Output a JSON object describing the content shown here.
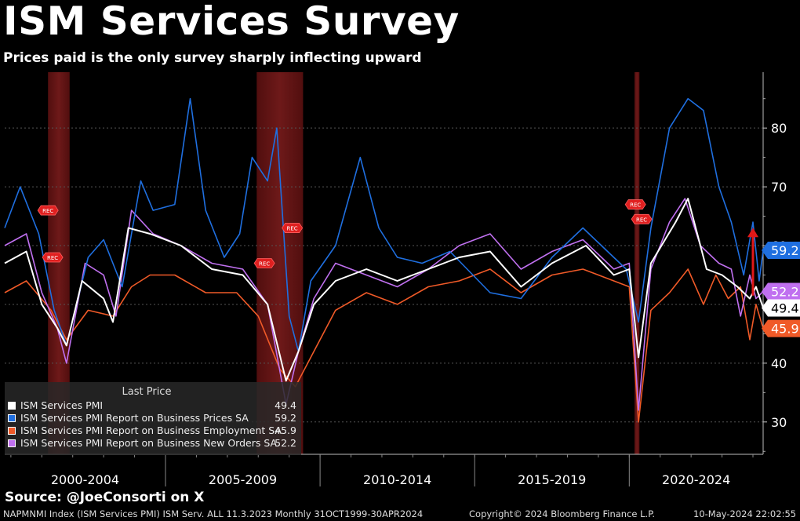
{
  "header": {
    "title": "ISM Services Survey",
    "subtitle": "Prices paid is the only survey sharply inflecting upward"
  },
  "source": "Source: @JoeConsorti on X",
  "footer": {
    "left": "NAPMNMI Index (ISM Services PMI) ISM Serv. ALL 11.3.2023  Monthly 31OCT1999-30APR2024",
    "middle": "Copyright© 2024 Bloomberg Finance L.P.",
    "right": "10-May-2024 22:02:55"
  },
  "legend": {
    "header": "Last Price",
    "entries": [
      {
        "name": "ISM Services PMI",
        "value": "49.4",
        "color": "#ffffff"
      },
      {
        "name": "ISM Services PMI Report on Business Prices SA",
        "value": "59.2",
        "color": "#1f6fe0"
      },
      {
        "name": "ISM Services PMI Report on Business Employment SA",
        "value": "45.9",
        "color": "#f05a28"
      },
      {
        "name": "ISM Services PMI Report on Business New Orders SA",
        "value": "52.2",
        "color": "#c070f0"
      }
    ]
  },
  "chart_data": {
    "type": "line",
    "x_range": [
      1999.8,
      2024.33
    ],
    "ylim": [
      24.5,
      89.5
    ],
    "y_ticks": [
      30,
      40,
      50,
      60,
      70,
      80
    ],
    "x_groups": [
      "2000-2004",
      "2005-2009",
      "2010-2014",
      "2015-2019",
      "2020-2024"
    ],
    "recessions": [
      [
        2001.2,
        2001.9
      ],
      [
        2007.95,
        2009.45
      ],
      [
        2020.17,
        2020.33
      ]
    ],
    "recession_label": "REC",
    "arrow_color": "#e01818",
    "grid": true,
    "legend_placement": "bottom-left",
    "series": [
      {
        "name": "ISM Services PMI",
        "color": "#ffffff",
        "last": "49.4",
        "points": [
          [
            1999.8,
            57
          ],
          [
            2000.5,
            59
          ],
          [
            2001.0,
            50
          ],
          [
            2001.5,
            46
          ],
          [
            2001.8,
            43
          ],
          [
            2002.3,
            54
          ],
          [
            2003.0,
            51
          ],
          [
            2003.3,
            47
          ],
          [
            2003.8,
            63
          ],
          [
            2004.5,
            62
          ],
          [
            2005.5,
            60
          ],
          [
            2006.5,
            56
          ],
          [
            2007.5,
            55
          ],
          [
            2008.3,
            50
          ],
          [
            2008.9,
            37
          ],
          [
            2009.3,
            42
          ],
          [
            2009.8,
            50
          ],
          [
            2010.5,
            54
          ],
          [
            2011.5,
            56
          ],
          [
            2012.5,
            54
          ],
          [
            2013.5,
            56
          ],
          [
            2014.5,
            58
          ],
          [
            2015.5,
            59
          ],
          [
            2016.5,
            53
          ],
          [
            2017.5,
            57
          ],
          [
            2018.6,
            60
          ],
          [
            2019.5,
            55
          ],
          [
            2020.0,
            56
          ],
          [
            2020.3,
            41
          ],
          [
            2020.7,
            57
          ],
          [
            2021.5,
            64
          ],
          [
            2021.9,
            68
          ],
          [
            2022.5,
            56
          ],
          [
            2023.0,
            55
          ],
          [
            2023.5,
            53
          ],
          [
            2023.9,
            51
          ],
          [
            2024.1,
            53
          ],
          [
            2024.33,
            49.4
          ]
        ]
      },
      {
        "name": "ISM Services PMI Report on Business Prices SA",
        "color": "#1f6fe0",
        "last": "59.2",
        "points": [
          [
            1999.8,
            63
          ],
          [
            2000.3,
            70
          ],
          [
            2000.9,
            62
          ],
          [
            2001.4,
            49
          ],
          [
            2001.8,
            43
          ],
          [
            2002.5,
            58
          ],
          [
            2003.0,
            61
          ],
          [
            2003.6,
            53
          ],
          [
            2004.2,
            71
          ],
          [
            2004.6,
            66
          ],
          [
            2005.3,
            67
          ],
          [
            2005.8,
            85
          ],
          [
            2006.3,
            66
          ],
          [
            2006.9,
            58
          ],
          [
            2007.4,
            62
          ],
          [
            2007.8,
            75
          ],
          [
            2008.3,
            71
          ],
          [
            2008.6,
            80
          ],
          [
            2009.0,
            48
          ],
          [
            2009.3,
            42
          ],
          [
            2009.7,
            54
          ],
          [
            2010.5,
            60
          ],
          [
            2011.3,
            75
          ],
          [
            2011.9,
            63
          ],
          [
            2012.5,
            58
          ],
          [
            2013.3,
            57
          ],
          [
            2014.2,
            59
          ],
          [
            2015.5,
            52
          ],
          [
            2016.5,
            51
          ],
          [
            2017.5,
            58
          ],
          [
            2018.5,
            63
          ],
          [
            2019.3,
            59
          ],
          [
            2019.9,
            56
          ],
          [
            2020.3,
            47
          ],
          [
            2020.7,
            63
          ],
          [
            2021.3,
            80
          ],
          [
            2021.9,
            85
          ],
          [
            2022.4,
            83
          ],
          [
            2022.9,
            70
          ],
          [
            2023.3,
            64
          ],
          [
            2023.7,
            55
          ],
          [
            2024.0,
            64
          ],
          [
            2024.2,
            54
          ],
          [
            2024.33,
            59.2
          ]
        ]
      },
      {
        "name": "ISM Services PMI Report on Business Employment SA",
        "color": "#f05a28",
        "last": "45.9",
        "points": [
          [
            1999.8,
            52
          ],
          [
            2000.5,
            54
          ],
          [
            2001.3,
            49
          ],
          [
            2001.8,
            44
          ],
          [
            2002.5,
            49
          ],
          [
            2003.3,
            48
          ],
          [
            2003.9,
            53
          ],
          [
            2004.5,
            55
          ],
          [
            2005.3,
            55
          ],
          [
            2006.3,
            52
          ],
          [
            2007.3,
            52
          ],
          [
            2008.0,
            48
          ],
          [
            2008.7,
            39
          ],
          [
            2009.2,
            36
          ],
          [
            2009.8,
            42
          ],
          [
            2010.5,
            49
          ],
          [
            2011.5,
            52
          ],
          [
            2012.5,
            50
          ],
          [
            2013.5,
            53
          ],
          [
            2014.5,
            54
          ],
          [
            2015.5,
            56
          ],
          [
            2016.5,
            52
          ],
          [
            2017.5,
            55
          ],
          [
            2018.5,
            56
          ],
          [
            2019.5,
            54
          ],
          [
            2020.0,
            53
          ],
          [
            2020.3,
            30
          ],
          [
            2020.7,
            49
          ],
          [
            2021.3,
            52
          ],
          [
            2021.9,
            56
          ],
          [
            2022.4,
            50
          ],
          [
            2022.8,
            55
          ],
          [
            2023.2,
            51
          ],
          [
            2023.6,
            53
          ],
          [
            2023.9,
            44
          ],
          [
            2024.1,
            50
          ],
          [
            2024.33,
            45.9
          ]
        ]
      },
      {
        "name": "ISM Services PMI Report on Business New Orders SA",
        "color": "#c070f0",
        "last": "52.2",
        "points": [
          [
            1999.8,
            60
          ],
          [
            2000.5,
            62
          ],
          [
            2001.0,
            52
          ],
          [
            2001.5,
            46
          ],
          [
            2001.8,
            40
          ],
          [
            2002.4,
            57
          ],
          [
            2003.0,
            55
          ],
          [
            2003.4,
            48
          ],
          [
            2003.9,
            66
          ],
          [
            2004.6,
            62
          ],
          [
            2005.5,
            60
          ],
          [
            2006.5,
            57
          ],
          [
            2007.5,
            56
          ],
          [
            2008.3,
            50
          ],
          [
            2008.9,
            33
          ],
          [
            2009.3,
            42
          ],
          [
            2009.8,
            51
          ],
          [
            2010.5,
            57
          ],
          [
            2011.5,
            55
          ],
          [
            2012.5,
            53
          ],
          [
            2013.5,
            56
          ],
          [
            2014.5,
            60
          ],
          [
            2015.5,
            62
          ],
          [
            2016.5,
            56
          ],
          [
            2017.5,
            59
          ],
          [
            2018.5,
            61
          ],
          [
            2019.5,
            56
          ],
          [
            2020.0,
            57
          ],
          [
            2020.3,
            32
          ],
          [
            2020.7,
            56
          ],
          [
            2021.3,
            64
          ],
          [
            2021.8,
            68
          ],
          [
            2022.3,
            60
          ],
          [
            2022.9,
            57
          ],
          [
            2023.3,
            56
          ],
          [
            2023.6,
            48
          ],
          [
            2023.9,
            55
          ],
          [
            2024.1,
            51
          ],
          [
            2024.33,
            52.2
          ]
        ]
      }
    ]
  }
}
